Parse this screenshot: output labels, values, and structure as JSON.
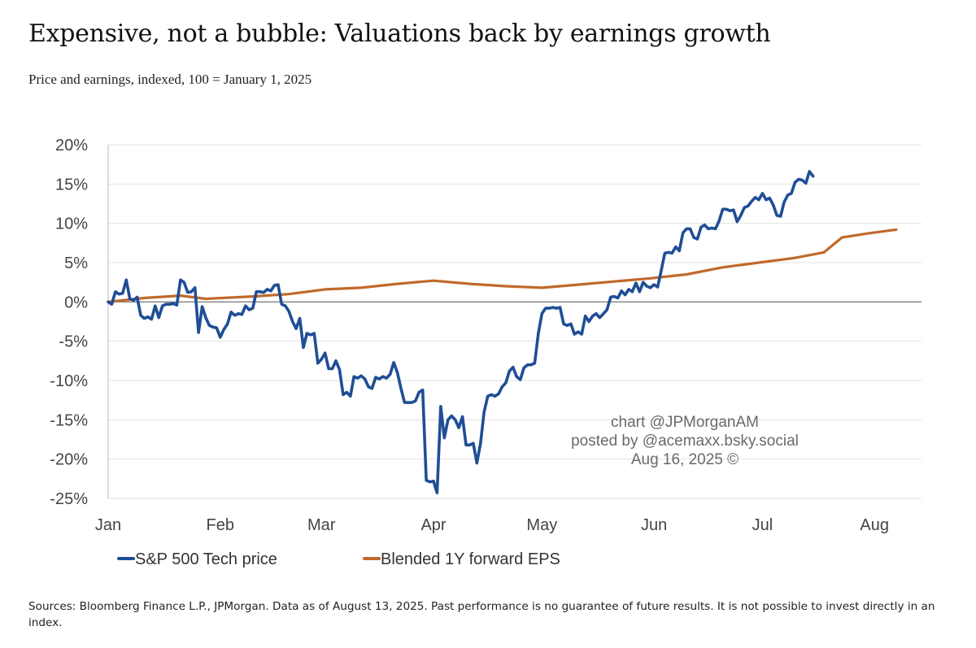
{
  "title": "Expensive, not a bubble: Valuations back by earnings growth",
  "subtitle": "Price and earnings, indexed, 100 = January 1, 2025",
  "footer": "Sources: Bloomberg Finance L.P., JPMorgan. Data as of August 13, 2025. Past performance is no guarantee of future results. It is not possible to invest directly in an index.",
  "watermark": [
    "chart @JPMorganAM",
    "posted by @acemaxx.bsky.social",
    "Aug 16, 2025 ©"
  ],
  "chart_data": {
    "type": "line",
    "title": "",
    "xlabel": "",
    "ylabel": "",
    "x_unit": "days since Jan 1, 2025",
    "xlim": [
      0,
      225
    ],
    "ylim": [
      -25,
      20
    ],
    "yticks": [
      20,
      15,
      10,
      5,
      0,
      -5,
      -10,
      -15,
      -20,
      -25
    ],
    "ytick_labels": [
      "20%",
      "15%",
      "10%",
      "5%",
      "0%",
      "-5%",
      "-10%",
      "-15%",
      "-20%",
      "-25%"
    ],
    "xticks": [
      {
        "label": "Jan",
        "x": 0
      },
      {
        "label": "Feb",
        "x": 31
      },
      {
        "label": "Mar",
        "x": 59
      },
      {
        "label": "Apr",
        "x": 90
      },
      {
        "label": "May",
        "x": 120
      },
      {
        "label": "Jun",
        "x": 151
      },
      {
        "label": "Jul",
        "x": 181
      },
      {
        "label": "Aug",
        "x": 212
      }
    ],
    "grid": true,
    "legend_position": "bottom-left",
    "series": [
      {
        "name": "S&P 500 Tech price",
        "color": "#1f4e96",
        "points": [
          [
            0,
            0
          ],
          [
            1,
            -0.3
          ],
          [
            2,
            1.3
          ],
          [
            3,
            1
          ],
          [
            4,
            1.1
          ],
          [
            5,
            2.8
          ],
          [
            6,
            0.4
          ],
          [
            7,
            0.2
          ],
          [
            8,
            0.6
          ],
          [
            9,
            -1.7
          ],
          [
            10,
            -2.1
          ],
          [
            11,
            -1.9
          ],
          [
            12,
            -2.2
          ],
          [
            13,
            -0.5
          ],
          [
            14,
            -2
          ],
          [
            15,
            -0.5
          ],
          [
            16,
            -0.3
          ],
          [
            17,
            -0.3
          ],
          [
            18,
            -0.2
          ],
          [
            19,
            -0.4
          ],
          [
            20,
            2.8
          ],
          [
            21,
            2.5
          ],
          [
            22,
            1.2
          ],
          [
            23,
            1.3
          ],
          [
            24,
            1.8
          ],
          [
            25,
            -3.9
          ],
          [
            26,
            -0.6
          ],
          [
            27,
            -2
          ],
          [
            28,
            -3
          ],
          [
            29,
            -3.2
          ],
          [
            30,
            -3.3
          ],
          [
            31,
            -4.5
          ],
          [
            32,
            -3.5
          ],
          [
            33,
            -2.8
          ],
          [
            34,
            -1.3
          ],
          [
            35,
            -1.7
          ],
          [
            36,
            -1.5
          ],
          [
            37,
            -1.6
          ],
          [
            38,
            -0.5
          ],
          [
            39,
            -1
          ],
          [
            40,
            -0.8
          ],
          [
            41,
            1.3
          ],
          [
            42,
            1.3
          ],
          [
            43,
            1.2
          ],
          [
            44,
            1.6
          ],
          [
            45,
            1.4
          ],
          [
            46,
            2.1
          ],
          [
            47,
            2.2
          ],
          [
            48,
            -0.3
          ],
          [
            49,
            -0.5
          ],
          [
            50,
            -1.2
          ],
          [
            51,
            -2.5
          ],
          [
            52,
            -3.4
          ],
          [
            53,
            -2.1
          ],
          [
            54,
            -5.8
          ],
          [
            55,
            -4
          ],
          [
            56,
            -4.2
          ],
          [
            57,
            -4
          ],
          [
            58,
            -7.8
          ],
          [
            59,
            -7.3
          ],
          [
            60,
            -6.5
          ],
          [
            61,
            -8.5
          ],
          [
            62,
            -8.5
          ],
          [
            63,
            -7.5
          ],
          [
            64,
            -8.6
          ],
          [
            65,
            -11.8
          ],
          [
            66,
            -11.5
          ],
          [
            67,
            -12
          ],
          [
            68,
            -9.5
          ],
          [
            69,
            -9.7
          ],
          [
            70,
            -9.4
          ],
          [
            71,
            -9.8
          ],
          [
            72,
            -10.8
          ],
          [
            73,
            -11
          ],
          [
            74,
            -9.6
          ],
          [
            75,
            -9.8
          ],
          [
            76,
            -9.5
          ],
          [
            77,
            -9.7
          ],
          [
            78,
            -9.2
          ],
          [
            79,
            -7.7
          ],
          [
            80,
            -9
          ],
          [
            81,
            -11
          ],
          [
            82,
            -12.8
          ],
          [
            83,
            -12.8
          ],
          [
            84,
            -12.8
          ],
          [
            85,
            -12.6
          ],
          [
            86,
            -11.5
          ],
          [
            87,
            -11.2
          ],
          [
            88,
            -22.7
          ],
          [
            89,
            -22.9
          ],
          [
            90,
            -22.8
          ],
          [
            91,
            -24.3
          ],
          [
            92,
            -13.3
          ],
          [
            93,
            -17.3
          ],
          [
            94,
            -15
          ],
          [
            95,
            -14.5
          ],
          [
            96,
            -15
          ],
          [
            97,
            -16
          ],
          [
            98,
            -14.6
          ],
          [
            99,
            -18.2
          ],
          [
            100,
            -18.2
          ],
          [
            101,
            -18
          ],
          [
            102,
            -20.5
          ],
          [
            103,
            -18
          ],
          [
            104,
            -14
          ],
          [
            105,
            -12
          ],
          [
            106,
            -11.8
          ],
          [
            107,
            -12
          ],
          [
            108,
            -11.7
          ],
          [
            109,
            -10.8
          ],
          [
            110,
            -10.3
          ],
          [
            111,
            -8.8
          ],
          [
            112,
            -8.3
          ],
          [
            113,
            -9.5
          ],
          [
            114,
            -9.9
          ],
          [
            115,
            -8.4
          ],
          [
            116,
            -8
          ],
          [
            117,
            -8
          ],
          [
            118,
            -7.8
          ],
          [
            119,
            -4
          ],
          [
            120,
            -1.5
          ],
          [
            121,
            -0.8
          ],
          [
            122,
            -0.8
          ],
          [
            123,
            -0.7
          ],
          [
            124,
            -0.8
          ],
          [
            125,
            -0.7
          ],
          [
            126,
            -2.8
          ],
          [
            127,
            -3
          ],
          [
            128,
            -2.8
          ],
          [
            129,
            -4.1
          ],
          [
            130,
            -3.8
          ],
          [
            131,
            -4.1
          ],
          [
            132,
            -1.8
          ],
          [
            133,
            -2.5
          ],
          [
            134,
            -1.8
          ],
          [
            135,
            -1.5
          ],
          [
            136,
            -2
          ],
          [
            137,
            -1.5
          ],
          [
            138,
            -1
          ],
          [
            139,
            0.6
          ],
          [
            140,
            0.7
          ],
          [
            141,
            0.5
          ],
          [
            142,
            1.4
          ],
          [
            143,
            0.9
          ],
          [
            144,
            1.6
          ],
          [
            145,
            1.3
          ],
          [
            146,
            2.4
          ],
          [
            147,
            1.3
          ],
          [
            148,
            2.5
          ],
          [
            149,
            2
          ],
          [
            150,
            1.8
          ],
          [
            151,
            2.2
          ],
          [
            152,
            1.9
          ],
          [
            153,
            4
          ],
          [
            154,
            6.2
          ],
          [
            155,
            6.3
          ],
          [
            156,
            6.2
          ],
          [
            157,
            7
          ],
          [
            158,
            6.5
          ],
          [
            159,
            8.8
          ],
          [
            160,
            9.3
          ],
          [
            161,
            9.3
          ],
          [
            162,
            8.2
          ],
          [
            163,
            8
          ],
          [
            164,
            9.5
          ],
          [
            165,
            9.8
          ],
          [
            166,
            9.3
          ],
          [
            167,
            9.4
          ],
          [
            168,
            9.3
          ],
          [
            169,
            10.3
          ],
          [
            170,
            11.8
          ],
          [
            171,
            11.8
          ],
          [
            172,
            11.6
          ],
          [
            173,
            11.7
          ],
          [
            174,
            10.2
          ],
          [
            175,
            11
          ],
          [
            176,
            12
          ],
          [
            177,
            12.2
          ],
          [
            178,
            12.8
          ],
          [
            179,
            13.3
          ],
          [
            180,
            13
          ],
          [
            181,
            13.8
          ],
          [
            182,
            13
          ],
          [
            183,
            13.2
          ],
          [
            184,
            12.3
          ],
          [
            185,
            11
          ],
          [
            186,
            10.9
          ],
          [
            187,
            12.7
          ],
          [
            188,
            13.6
          ],
          [
            189,
            13.8
          ],
          [
            190,
            15.2
          ],
          [
            191,
            15.6
          ],
          [
            192,
            15.5
          ],
          [
            193,
            15.1
          ],
          [
            194,
            16.6
          ],
          [
            195,
            16
          ]
        ]
      },
      {
        "name": "Blended 1Y forward EPS",
        "color": "#c0692c",
        "points": [
          [
            0,
            0
          ],
          [
            10,
            0.5
          ],
          [
            20,
            0.8
          ],
          [
            27,
            0.4
          ],
          [
            40,
            0.7
          ],
          [
            50,
            1
          ],
          [
            60,
            1.6
          ],
          [
            70,
            1.8
          ],
          [
            80,
            2.3
          ],
          [
            90,
            2.7
          ],
          [
            100,
            2.3
          ],
          [
            110,
            2
          ],
          [
            120,
            1.8
          ],
          [
            130,
            2.2
          ],
          [
            140,
            2.6
          ],
          [
            150,
            3
          ],
          [
            160,
            3.5
          ],
          [
            170,
            4.4
          ],
          [
            180,
            5
          ],
          [
            190,
            5.6
          ],
          [
            198,
            6.3
          ],
          [
            203,
            8.2
          ],
          [
            210,
            8.7
          ],
          [
            218,
            9.2
          ]
        ]
      }
    ]
  }
}
